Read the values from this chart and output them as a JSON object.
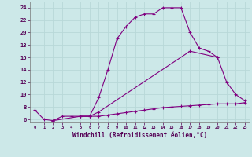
{
  "xlabel": "Windchill (Refroidissement éolien,°C)",
  "bg_color": "#cce8e8",
  "line_color": "#800080",
  "grid_color": "#aacccc",
  "xlim": [
    -0.5,
    23.5
  ],
  "ylim": [
    5.5,
    25.0
  ],
  "xticks": [
    0,
    1,
    2,
    3,
    4,
    5,
    6,
    7,
    8,
    9,
    10,
    11,
    12,
    13,
    14,
    15,
    16,
    17,
    18,
    19,
    20,
    21,
    22,
    23
  ],
  "yticks": [
    6,
    8,
    10,
    12,
    14,
    16,
    18,
    20,
    22,
    24
  ],
  "curve1_x": [
    0,
    1,
    2,
    3,
    4,
    5,
    6,
    7,
    8,
    9,
    10,
    11,
    12,
    13,
    14,
    15,
    16,
    17,
    18,
    19,
    20,
    21,
    22,
    23
  ],
  "curve1_y": [
    7.5,
    6.0,
    5.8,
    6.5,
    6.5,
    6.5,
    6.5,
    9.5,
    14.0,
    19.0,
    21.0,
    22.5,
    23.0,
    23.0,
    24.0,
    24.0,
    24.0,
    20.0,
    17.5,
    17.0,
    16.0,
    12.0,
    10.0,
    9.0
  ],
  "curve2_x": [
    2,
    5,
    6,
    7,
    17,
    20
  ],
  "curve2_y": [
    5.8,
    6.5,
    6.5,
    7.2,
    17.0,
    16.0
  ],
  "curve3_x": [
    5,
    6,
    7,
    8,
    9,
    10,
    11,
    12,
    13,
    14,
    15,
    16,
    17,
    18,
    19,
    20,
    21,
    22,
    23
  ],
  "curve3_y": [
    6.5,
    6.5,
    6.5,
    6.7,
    6.9,
    7.1,
    7.3,
    7.5,
    7.7,
    7.9,
    8.0,
    8.1,
    8.2,
    8.3,
    8.4,
    8.5,
    8.5,
    8.5,
    8.7
  ]
}
